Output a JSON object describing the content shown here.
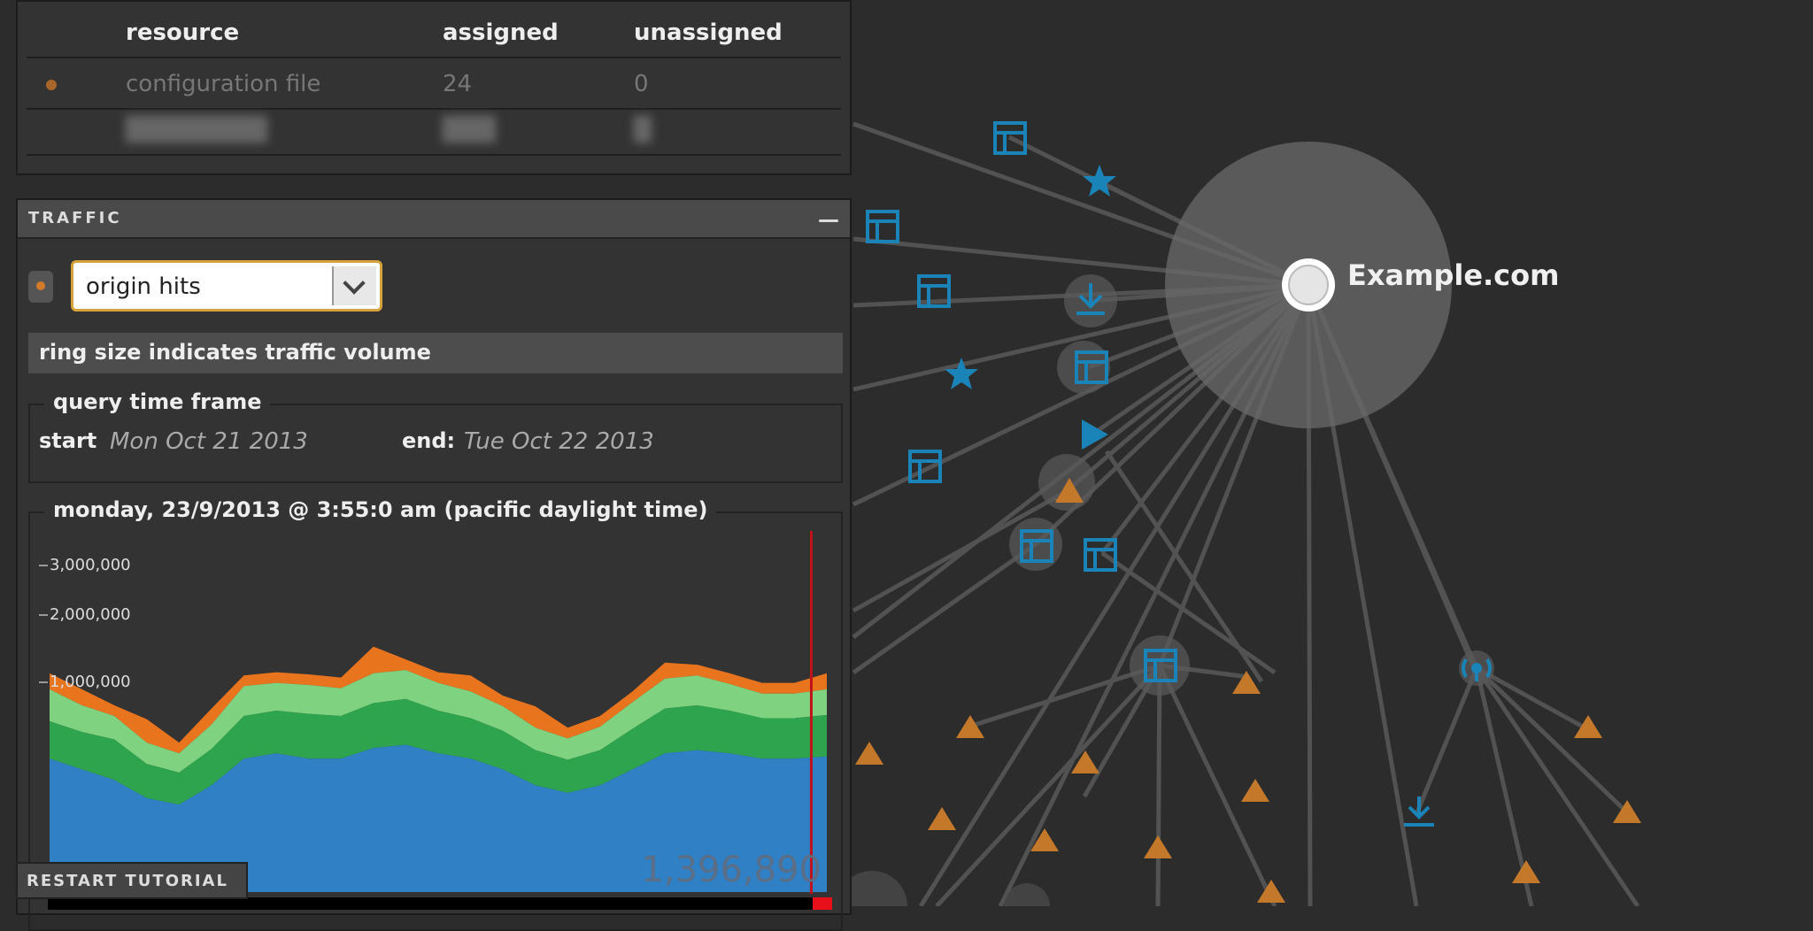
{
  "resource_table": {
    "headers": [
      "resource",
      "assigned",
      "unassigned"
    ],
    "rows": [
      {
        "resource": "configuration file",
        "assigned": "24",
        "unassigned": "0"
      },
      {
        "resource": "████████",
        "assigned": "███",
        "unassigned": "█"
      }
    ]
  },
  "traffic_panel": {
    "title": "TRAFFIC",
    "collapse_label": "—",
    "metric_select": {
      "value": "origin hits"
    },
    "hint": "ring size indicates traffic volume",
    "time_frame": {
      "legend": "query time frame",
      "start_label": "start",
      "start_value": "Mon Oct 21 2013",
      "end_label": "end:",
      "end_value": "Tue Oct 22 2013"
    },
    "chart": {
      "legend": "monday, 23/9/2013 @ 3:55:0 am (pacific daylight time)",
      "current_value": "1,396,890",
      "position_fraction": 0.98
    }
  },
  "chart_data": {
    "type": "area",
    "title": "monday, 23/9/2013 @ 3:55:0 am (pacific daylight time)",
    "y_ticks": [
      "3,000,000",
      "2,000,000",
      "1,000,000"
    ],
    "ylim": [
      0,
      3400000
    ],
    "x": [
      0,
      1,
      2,
      3,
      4,
      5,
      6,
      7,
      8,
      9,
      10,
      11,
      12,
      13,
      14,
      15,
      16,
      17,
      18,
      19,
      20,
      21,
      22,
      23,
      24
    ],
    "series": [
      {
        "color": "#2f80c4",
        "values": [
          1250000,
          1150000,
          1050000,
          880000,
          820000,
          1000000,
          1250000,
          1300000,
          1250000,
          1250000,
          1350000,
          1380000,
          1300000,
          1250000,
          1150000,
          1000000,
          930000,
          1000000,
          1150000,
          1300000,
          1330000,
          1300000,
          1250000,
          1250000,
          1270000
        ]
      },
      {
        "color": "#2ea44f",
        "values": [
          350000,
          350000,
          380000,
          320000,
          300000,
          340000,
          400000,
          400000,
          420000,
          400000,
          420000,
          430000,
          400000,
          380000,
          360000,
          330000,
          310000,
          330000,
          380000,
          420000,
          420000,
          400000,
          380000,
          380000,
          390000
        ]
      },
      {
        "color": "#7fd27f",
        "values": [
          300000,
          250000,
          220000,
          200000,
          180000,
          230000,
          280000,
          260000,
          270000,
          260000,
          280000,
          270000,
          260000,
          250000,
          230000,
          210000,
          200000,
          220000,
          250000,
          280000,
          280000,
          250000,
          230000,
          230000,
          240000
        ]
      },
      {
        "color": "#e8741e",
        "values": [
          150000,
          150000,
          100000,
          220000,
          100000,
          150000,
          100000,
          100000,
          100000,
          100000,
          250000,
          100000,
          100000,
          150000,
          100000,
          200000,
          100000,
          100000,
          100000,
          150000,
          100000,
          100000,
          100000,
          100000,
          150000
        ]
      }
    ]
  },
  "graph": {
    "center_label": "Example.com",
    "colors": {
      "node_blue": "#1a84b8",
      "node_orange": "#c4782a",
      "link": "#5a5a5a",
      "halo": "#5c5c5c"
    },
    "icons": [
      "table-icon",
      "star-icon",
      "download-icon",
      "play-icon",
      "warning-icon",
      "antenna-icon"
    ]
  },
  "tutorial": {
    "restart_label": "RESTART TUTORIAL"
  }
}
